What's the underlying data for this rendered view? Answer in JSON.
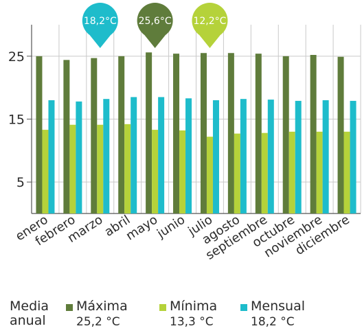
{
  "chart_data": {
    "type": "bar",
    "categories": [
      "enero",
      "febrero",
      "marzo",
      "abril",
      "mayo",
      "junio",
      "julio",
      "agosto",
      "septiembre",
      "octubre",
      "noviembre",
      "diciembre"
    ],
    "series": [
      {
        "name": "Máxima",
        "color": "#5f7c3b",
        "values": [
          25.0,
          24.4,
          24.7,
          25.0,
          25.6,
          25.4,
          25.5,
          25.5,
          25.4,
          25.0,
          25.2,
          24.9
        ]
      },
      {
        "name": "Mínima",
        "color": "#b5d23a",
        "values": [
          13.3,
          14.1,
          14.1,
          14.2,
          13.3,
          13.2,
          12.2,
          12.7,
          12.8,
          13.0,
          13.0,
          13.0
        ]
      },
      {
        "name": "Mensual",
        "color": "#1ebccb",
        "values": [
          18.0,
          17.8,
          18.2,
          18.5,
          18.5,
          18.3,
          18.0,
          18.2,
          18.1,
          17.9,
          18.0,
          17.9
        ]
      }
    ],
    "yticks": [
      5,
      15,
      25
    ],
    "ylim": [
      0,
      30
    ],
    "grid": true,
    "callouts": [
      {
        "label": "18,2°C",
        "month_index": 2,
        "color": "#1ebccb"
      },
      {
        "label": "25,6°C",
        "month_index": 4,
        "color": "#5f7c3b"
      },
      {
        "label": "12,2°C",
        "month_index": 6,
        "color": "#b5d23a"
      }
    ]
  },
  "legend": {
    "heading_line1": "Media",
    "heading_line2": "anual",
    "items": [
      {
        "name": "Máxima",
        "value": "25,2 °C",
        "color": "#5f7c3b"
      },
      {
        "name": "Mínima",
        "value": "13,3 °C",
        "color": "#b5d23a"
      },
      {
        "name": "Mensual",
        "value": "18,2 °C",
        "color": "#1ebccb"
      }
    ]
  }
}
